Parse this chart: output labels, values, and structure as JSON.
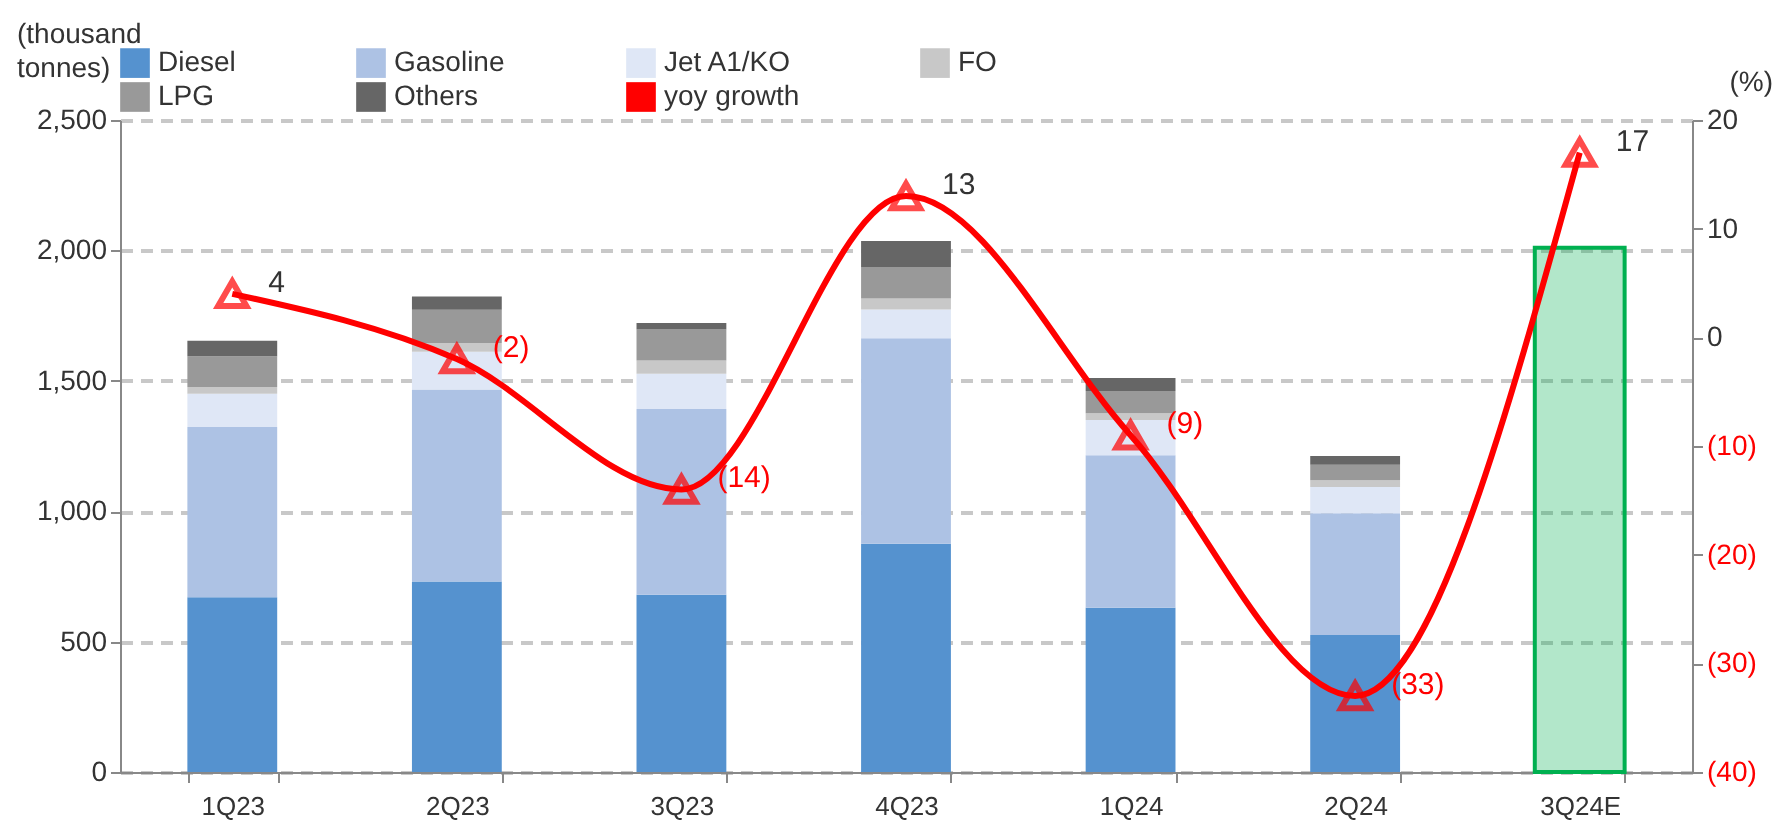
{
  "chart_data": {
    "type": "bar",
    "stacked": true,
    "categories": [
      "1Q23",
      "2Q23",
      "3Q23",
      "4Q23",
      "1Q24",
      "2Q24",
      "3Q24E"
    ],
    "ylabel": "(thousand tonnes)",
    "y2label": "(%)",
    "ylim": [
      0,
      2500
    ],
    "yticks": [
      0,
      {
        "value": 500,
        "label": "500"
      },
      {
        "value": 1000,
        "label": "1,000"
      },
      {
        "value": 1500,
        "label": "1,500"
      },
      {
        "value": 2000,
        "label": "2,000"
      },
      {
        "value": 2500,
        "label": "2,500"
      }
    ],
    "y2lim": [
      -40,
      20
    ],
    "y2ticks": [
      {
        "value": -40,
        "label": "(40)"
      },
      {
        "value": -30,
        "label": "(30)"
      },
      {
        "value": -20,
        "label": "(20)"
      },
      {
        "value": -10,
        "label": "(10)"
      },
      0,
      10,
      20
    ],
    "grid": "y",
    "legend": "top",
    "marker": "triangle",
    "line_style": "solid",
    "series": [
      {
        "name": "Diesel",
        "color": "#5592cf",
        "values": [
          670,
          730,
          680,
          875,
          630,
          525,
          null
        ]
      },
      {
        "name": "Gasoline",
        "color": "#adc2e4",
        "values": [
          653,
          737,
          712,
          788,
          585,
          467,
          null
        ]
      },
      {
        "name": "Jet A1/KO",
        "color": "#dfe7f6",
        "values": [
          127,
          144,
          135,
          110,
          135,
          101,
          null
        ]
      },
      {
        "name": "FO",
        "color": "#c8c8c8",
        "values": [
          26,
          34,
          51,
          43,
          26,
          26,
          null
        ]
      },
      {
        "name": "LPG",
        "color": "#999999",
        "values": [
          118,
          127,
          119,
          118,
          85,
          59,
          null
        ]
      },
      {
        "name": "Others",
        "color": "#666666",
        "values": [
          60,
          51,
          25,
          102,
          50,
          34,
          null
        ]
      },
      {
        "color": "#00b050",
        "values": [
          null,
          null,
          null,
          null,
          null,
          null,
          2010
        ]
      },
      {
        "name": "yoy growth",
        "type": "line",
        "axis": "y2",
        "color": "#ff0000",
        "values": [
          4,
          -2,
          -14,
          13,
          -9,
          -33,
          17
        ],
        "value_labels": [
          "4",
          "(2)",
          "(14)",
          "13",
          "(9)",
          "(33)",
          "17"
        ]
      }
    ]
  }
}
